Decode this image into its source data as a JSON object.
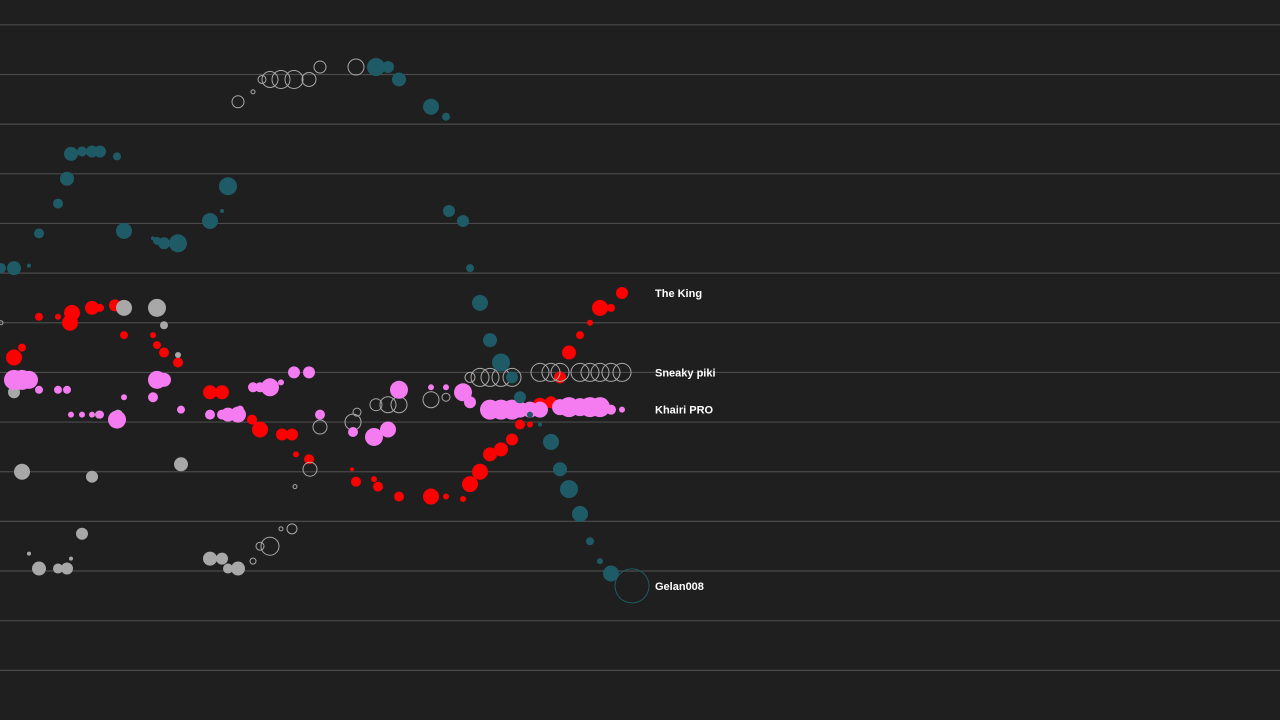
{
  "chart_data": {
    "type": "scatter",
    "title": "",
    "xlabel": "",
    "ylabel": "",
    "xlim": [
      0,
      1280
    ],
    "ylim": [
      -8,
      6.5
    ],
    "grid": true,
    "gridlines": [
      6,
      5,
      4,
      3,
      2,
      1,
      0,
      -1,
      -2,
      -3,
      -4,
      -5,
      -6,
      -7
    ],
    "series": [
      {
        "name": "The King",
        "color": "#ff0000",
        "hollow": false,
        "points": [
          {
            "x": 14,
            "y": -0.7,
            "r": 8
          },
          {
            "x": 22,
            "y": -0.5,
            "r": 4
          },
          {
            "x": 39,
            "y": 0.12,
            "r": 4
          },
          {
            "x": 58,
            "y": 0.12,
            "r": 3
          },
          {
            "x": 70,
            "y": 0.0,
            "r": 8
          },
          {
            "x": 72,
            "y": 0.2,
            "r": 8
          },
          {
            "x": 92,
            "y": 0.3,
            "r": 7
          },
          {
            "x": 100,
            "y": 0.3,
            "r": 4
          },
          {
            "x": 115,
            "y": 0.35,
            "r": 6
          },
          {
            "x": 124,
            "y": -0.25,
            "r": 4
          },
          {
            "x": 153,
            "y": -0.25,
            "r": 3
          },
          {
            "x": 157,
            "y": -0.45,
            "r": 4
          },
          {
            "x": 164,
            "y": -0.6,
            "r": 5
          },
          {
            "x": 178,
            "y": -0.8,
            "r": 5
          },
          {
            "x": 210,
            "y": -1.4,
            "r": 7
          },
          {
            "x": 222,
            "y": -1.4,
            "r": 7
          },
          {
            "x": 252,
            "y": -1.95,
            "r": 5
          },
          {
            "x": 260,
            "y": -2.15,
            "r": 8
          },
          {
            "x": 282,
            "y": -2.25,
            "r": 6
          },
          {
            "x": 292,
            "y": -2.25,
            "r": 6
          },
          {
            "x": 296,
            "y": -2.65,
            "r": 3
          },
          {
            "x": 309,
            "y": -2.75,
            "r": 5
          },
          {
            "x": 352,
            "y": -2.95,
            "r": 2
          },
          {
            "x": 356,
            "y": -3.2,
            "r": 5
          },
          {
            "x": 374,
            "y": -3.15,
            "r": 3
          },
          {
            "x": 378,
            "y": -3.3,
            "r": 5
          },
          {
            "x": 399,
            "y": -3.5,
            "r": 5
          },
          {
            "x": 431,
            "y": -3.5,
            "r": 8
          },
          {
            "x": 446,
            "y": -3.5,
            "r": 3
          },
          {
            "x": 463,
            "y": -3.55,
            "r": 3
          },
          {
            "x": 470,
            "y": -3.25,
            "r": 8
          },
          {
            "x": 480,
            "y": -3.0,
            "r": 8
          },
          {
            "x": 490,
            "y": -2.65,
            "r": 7
          },
          {
            "x": 501,
            "y": -2.55,
            "r": 7
          },
          {
            "x": 512,
            "y": -2.35,
            "r": 6
          },
          {
            "x": 520,
            "y": -2.05,
            "r": 5
          },
          {
            "x": 530,
            "y": -2.05,
            "r": 3
          },
          {
            "x": 540,
            "y": -1.65,
            "r": 7
          },
          {
            "x": 551,
            "y": -1.6,
            "r": 6
          },
          {
            "x": 560,
            "y": -1.1,
            "r": 6
          },
          {
            "x": 569,
            "y": -0.6,
            "r": 7
          },
          {
            "x": 580,
            "y": -0.25,
            "r": 4
          },
          {
            "x": 590,
            "y": 0.0,
            "r": 3
          },
          {
            "x": 600,
            "y": 0.3,
            "r": 8
          },
          {
            "x": 611,
            "y": 0.3,
            "r": 4
          },
          {
            "x": 622,
            "y": 0.6,
            "r": 6
          }
        ]
      },
      {
        "name": "Sneaky piki",
        "color": "#a8a8a8",
        "hollow": true,
        "points": [
          {
            "x": 1,
            "y": 0.0,
            "r": 2
          },
          {
            "x": 238,
            "y": 4.45,
            "r": 6
          },
          {
            "x": 253,
            "y": 4.65,
            "r": 2
          },
          {
            "x": 262,
            "y": 4.9,
            "r": 4
          },
          {
            "x": 270,
            "y": 4.9,
            "r": 8
          },
          {
            "x": 281,
            "y": 4.9,
            "r": 9
          },
          {
            "x": 294,
            "y": 4.9,
            "r": 9
          },
          {
            "x": 309,
            "y": 4.9,
            "r": 7
          },
          {
            "x": 320,
            "y": 5.15,
            "r": 6
          },
          {
            "x": 356,
            "y": 5.15,
            "r": 8
          },
          {
            "x": 295,
            "y": -3.3,
            "r": 2
          },
          {
            "x": 310,
            "y": -2.95,
            "r": 7
          },
          {
            "x": 320,
            "y": -2.1,
            "r": 7
          },
          {
            "x": 353,
            "y": -2.0,
            "r": 8
          },
          {
            "x": 357,
            "y": -1.8,
            "r": 4
          },
          {
            "x": 376,
            "y": -1.65,
            "r": 6
          },
          {
            "x": 388,
            "y": -1.65,
            "r": 8
          },
          {
            "x": 399,
            "y": -1.65,
            "r": 8
          },
          {
            "x": 431,
            "y": -1.55,
            "r": 8
          },
          {
            "x": 446,
            "y": -1.5,
            "r": 4
          },
          {
            "x": 470,
            "y": -1.1,
            "r": 5
          },
          {
            "x": 480,
            "y": -1.1,
            "r": 9
          },
          {
            "x": 490,
            "y": -1.1,
            "r": 9
          },
          {
            "x": 501,
            "y": -1.1,
            "r": 9
          },
          {
            "x": 512,
            "y": -1.1,
            "r": 9
          },
          {
            "x": 540,
            "y": -1.0,
            "r": 9
          },
          {
            "x": 551,
            "y": -1.0,
            "r": 9
          },
          {
            "x": 560,
            "y": -1.0,
            "r": 9
          },
          {
            "x": 580,
            "y": -1.0,
            "r": 9
          },
          {
            "x": 590,
            "y": -1.0,
            "r": 9
          },
          {
            "x": 600,
            "y": -1.0,
            "r": 9
          },
          {
            "x": 611,
            "y": -1.0,
            "r": 9
          },
          {
            "x": 622,
            "y": -1.0,
            "r": 9
          },
          {
            "x": 292,
            "y": -4.15,
            "r": 5
          },
          {
            "x": 281,
            "y": -4.15,
            "r": 2
          },
          {
            "x": 270,
            "y": -4.5,
            "r": 9
          },
          {
            "x": 260,
            "y": -4.5,
            "r": 4
          },
          {
            "x": 253,
            "y": -4.8,
            "r": 3
          }
        ]
      },
      {
        "name": "Sneaky piki",
        "color": "#a8a8a8",
        "hollow": false,
        "points": [
          {
            "x": 14,
            "y": -1.4,
            "r": 6
          },
          {
            "x": 22,
            "y": -3.0,
            "r": 8
          },
          {
            "x": 92,
            "y": -3.1,
            "r": 6
          },
          {
            "x": 82,
            "y": -4.25,
            "r": 6
          },
          {
            "x": 29,
            "y": -4.65,
            "r": 2
          },
          {
            "x": 39,
            "y": -4.95,
            "r": 7
          },
          {
            "x": 58,
            "y": -4.95,
            "r": 5
          },
          {
            "x": 67,
            "y": -4.95,
            "r": 6
          },
          {
            "x": 71,
            "y": -4.75,
            "r": 2
          },
          {
            "x": 99,
            "y": -1.85,
            "r": 4
          },
          {
            "x": 118,
            "y": -1.85,
            "r": 5
          },
          {
            "x": 124,
            "y": 0.3,
            "r": 8
          },
          {
            "x": 157,
            "y": 0.3,
            "r": 9
          },
          {
            "x": 164,
            "y": -0.05,
            "r": 4
          },
          {
            "x": 178,
            "y": -0.65,
            "r": 3
          },
          {
            "x": 181,
            "y": -2.85,
            "r": 7
          },
          {
            "x": 210,
            "y": -4.75,
            "r": 7
          },
          {
            "x": 222,
            "y": -4.75,
            "r": 6
          },
          {
            "x": 228,
            "y": -4.95,
            "r": 5
          },
          {
            "x": 238,
            "y": -4.95,
            "r": 7
          }
        ]
      },
      {
        "name": "Khairi PRO",
        "color": "#f47cf0",
        "hollow": false,
        "points": [
          {
            "x": 14,
            "y": -1.15,
            "r": 10
          },
          {
            "x": 22,
            "y": -1.15,
            "r": 10
          },
          {
            "x": 29,
            "y": -1.15,
            "r": 9
          },
          {
            "x": 39,
            "y": -1.35,
            "r": 4
          },
          {
            "x": 58,
            "y": -1.35,
            "r": 4
          },
          {
            "x": 67,
            "y": -1.35,
            "r": 4
          },
          {
            "x": 71,
            "y": -1.85,
            "r": 3
          },
          {
            "x": 82,
            "y": -1.85,
            "r": 3
          },
          {
            "x": 92,
            "y": -1.85,
            "r": 3
          },
          {
            "x": 100,
            "y": -1.85,
            "r": 4
          },
          {
            "x": 117,
            "y": -1.95,
            "r": 9
          },
          {
            "x": 124,
            "y": -1.5,
            "r": 3
          },
          {
            "x": 153,
            "y": -1.5,
            "r": 5
          },
          {
            "x": 157,
            "y": -1.15,
            "r": 9
          },
          {
            "x": 164,
            "y": -1.15,
            "r": 7
          },
          {
            "x": 181,
            "y": -1.75,
            "r": 4
          },
          {
            "x": 210,
            "y": -1.85,
            "r": 5
          },
          {
            "x": 222,
            "y": -1.85,
            "r": 5
          },
          {
            "x": 228,
            "y": -1.85,
            "r": 7
          },
          {
            "x": 238,
            "y": -1.85,
            "r": 8
          },
          {
            "x": 240,
            "y": -1.75,
            "r": 4
          },
          {
            "x": 253,
            "y": -1.3,
            "r": 5
          },
          {
            "x": 260,
            "y": -1.3,
            "r": 5
          },
          {
            "x": 270,
            "y": -1.3,
            "r": 9
          },
          {
            "x": 281,
            "y": -1.2,
            "r": 3
          },
          {
            "x": 294,
            "y": -1.0,
            "r": 6
          },
          {
            "x": 309,
            "y": -1.0,
            "r": 6
          },
          {
            "x": 320,
            "y": -1.85,
            "r": 5
          },
          {
            "x": 353,
            "y": -2.2,
            "r": 5
          },
          {
            "x": 374,
            "y": -2.3,
            "r": 9
          },
          {
            "x": 388,
            "y": -2.15,
            "r": 8
          },
          {
            "x": 399,
            "y": -1.35,
            "r": 9
          },
          {
            "x": 431,
            "y": -1.3,
            "r": 3
          },
          {
            "x": 446,
            "y": -1.3,
            "r": 3
          },
          {
            "x": 463,
            "y": -1.4,
            "r": 9
          },
          {
            "x": 470,
            "y": -1.6,
            "r": 6
          },
          {
            "x": 490,
            "y": -1.75,
            "r": 10
          },
          {
            "x": 501,
            "y": -1.75,
            "r": 10
          },
          {
            "x": 512,
            "y": -1.75,
            "r": 10
          },
          {
            "x": 520,
            "y": -1.75,
            "r": 8
          },
          {
            "x": 530,
            "y": -1.75,
            "r": 8
          },
          {
            "x": 540,
            "y": -1.75,
            "r": 8
          },
          {
            "x": 560,
            "y": -1.7,
            "r": 8
          },
          {
            "x": 569,
            "y": -1.7,
            "r": 10
          },
          {
            "x": 580,
            "y": -1.7,
            "r": 9
          },
          {
            "x": 590,
            "y": -1.7,
            "r": 10
          },
          {
            "x": 600,
            "y": -1.7,
            "r": 10
          },
          {
            "x": 611,
            "y": -1.75,
            "r": 5
          },
          {
            "x": 622,
            "y": -1.75,
            "r": 3
          }
        ]
      },
      {
        "name": "Gelan008",
        "color": "#1f5b67",
        "hollow": false,
        "points": [
          {
            "x": 1,
            "y": 1.1,
            "r": 5
          },
          {
            "x": 14,
            "y": 1.1,
            "r": 7
          },
          {
            "x": 29,
            "y": 1.15,
            "r": 2
          },
          {
            "x": 39,
            "y": 1.8,
            "r": 5
          },
          {
            "x": 58,
            "y": 2.4,
            "r": 5
          },
          {
            "x": 67,
            "y": 2.9,
            "r": 7
          },
          {
            "x": 71,
            "y": 3.4,
            "r": 7
          },
          {
            "x": 82,
            "y": 3.45,
            "r": 5
          },
          {
            "x": 92,
            "y": 3.45,
            "r": 6
          },
          {
            "x": 100,
            "y": 3.45,
            "r": 6
          },
          {
            "x": 117,
            "y": 3.35,
            "r": 4
          },
          {
            "x": 124,
            "y": 1.85,
            "r": 8
          },
          {
            "x": 153,
            "y": 1.7,
            "r": 2
          },
          {
            "x": 157,
            "y": 1.65,
            "r": 4
          },
          {
            "x": 164,
            "y": 1.6,
            "r": 6
          },
          {
            "x": 178,
            "y": 1.6,
            "r": 9
          },
          {
            "x": 210,
            "y": 2.05,
            "r": 8
          },
          {
            "x": 222,
            "y": 2.25,
            "r": 2
          },
          {
            "x": 228,
            "y": 2.75,
            "r": 9
          },
          {
            "x": 376,
            "y": 5.15,
            "r": 9
          },
          {
            "x": 388,
            "y": 5.15,
            "r": 6
          },
          {
            "x": 399,
            "y": 4.9,
            "r": 7
          },
          {
            "x": 431,
            "y": 4.35,
            "r": 8
          },
          {
            "x": 446,
            "y": 4.15,
            "r": 4
          },
          {
            "x": 449,
            "y": 2.25,
            "r": 6
          },
          {
            "x": 463,
            "y": 2.05,
            "r": 6
          },
          {
            "x": 470,
            "y": 1.1,
            "r": 4
          },
          {
            "x": 480,
            "y": 0.4,
            "r": 8
          },
          {
            "x": 490,
            "y": -0.35,
            "r": 7
          },
          {
            "x": 501,
            "y": -0.8,
            "r": 9
          },
          {
            "x": 512,
            "y": -1.1,
            "r": 6
          },
          {
            "x": 520,
            "y": -1.5,
            "r": 6
          },
          {
            "x": 530,
            "y": -1.85,
            "r": 3
          },
          {
            "x": 540,
            "y": -2.05,
            "r": 2
          },
          {
            "x": 551,
            "y": -2.4,
            "r": 8
          },
          {
            "x": 560,
            "y": -2.95,
            "r": 7
          },
          {
            "x": 569,
            "y": -3.35,
            "r": 9
          },
          {
            "x": 580,
            "y": -3.85,
            "r": 8
          },
          {
            "x": 590,
            "y": -4.4,
            "r": 4
          },
          {
            "x": 600,
            "y": -4.8,
            "r": 3
          },
          {
            "x": 611,
            "y": -5.05,
            "r": 8
          }
        ]
      },
      {
        "name": "Gelan008",
        "color": "#1f5b67",
        "hollow": true,
        "points": [
          {
            "x": 632,
            "y": -5.3,
            "r": 17
          }
        ]
      }
    ],
    "labels": [
      {
        "text": "The King",
        "y": 0.6
      },
      {
        "text": "Sneaky piki",
        "y": -1.0
      },
      {
        "text": "Khairi PRO",
        "y": -1.75
      },
      {
        "text": "Gelan008",
        "y": -5.3
      }
    ]
  }
}
